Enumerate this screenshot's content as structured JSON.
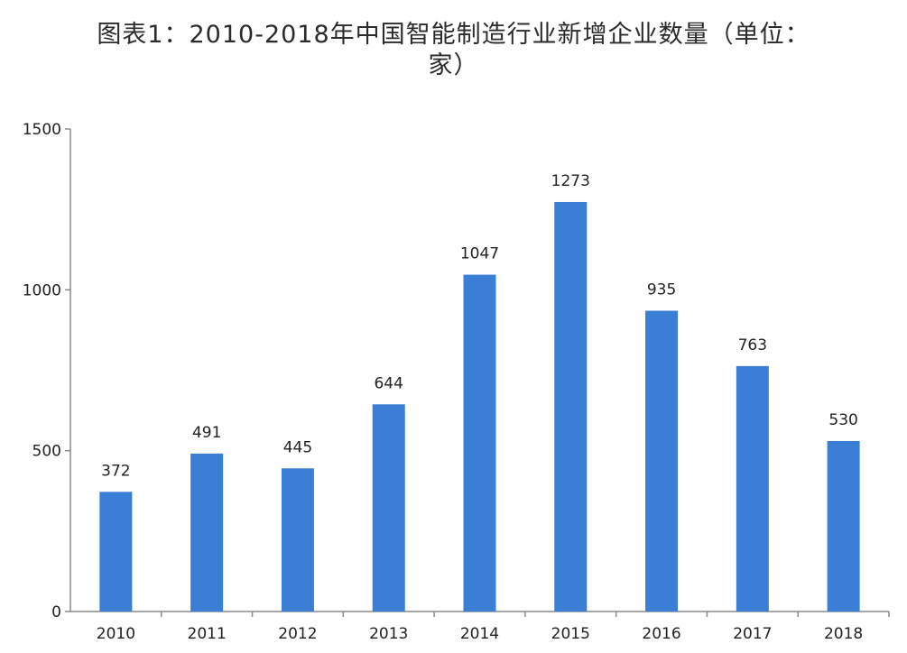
{
  "title_line1": "图表1：2010-2018年中国智能制造行业新增企业数量（单位：",
  "title_line2": "家）",
  "chart_data": {
    "type": "bar",
    "title": "图表1：2010-2018年中国智能制造行业新增企业数量（单位：家）",
    "categories": [
      "2010",
      "2011",
      "2012",
      "2013",
      "2014",
      "2015",
      "2016",
      "2017",
      "2018"
    ],
    "values": [
      372,
      491,
      445,
      644,
      1047,
      1273,
      935,
      763,
      530
    ],
    "data_labels": [
      "372",
      "491",
      "445",
      "644",
      "1047",
      "1273",
      "935",
      "763",
      "530"
    ],
    "yticks": [
      "0",
      "500",
      "1000",
      "1500"
    ],
    "ylim": [
      0,
      1500
    ],
    "grid": false,
    "legend": "none",
    "bar_color": "#3a7fd5"
  }
}
